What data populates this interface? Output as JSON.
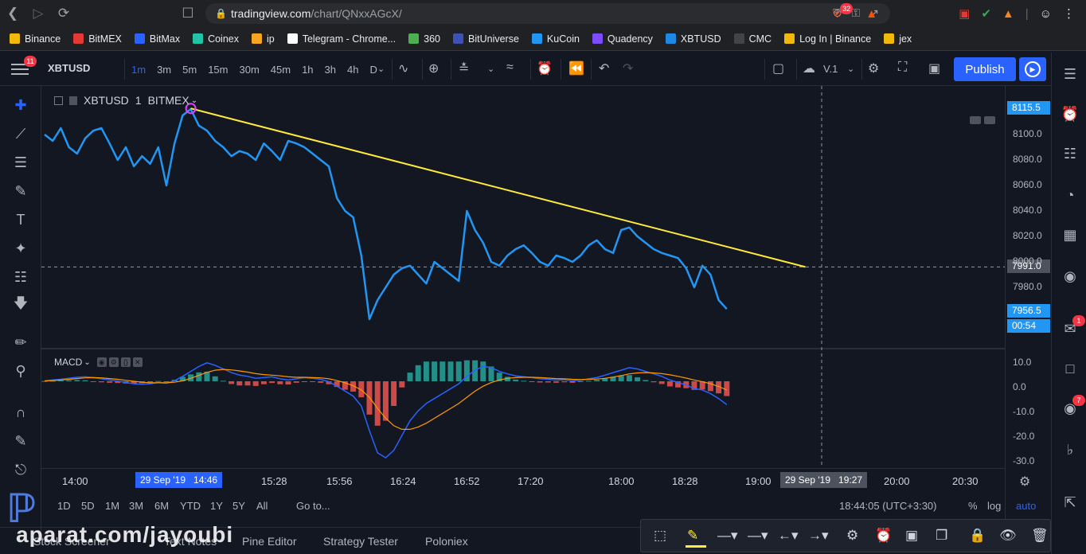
{
  "browser": {
    "url_host": "tradingview.com",
    "url_path": "/chart/QNxxAGcX/",
    "brave_badge": "32",
    "bookmarks": [
      {
        "label": "Binance",
        "color": "#f0b90b"
      },
      {
        "label": "BitMEX",
        "color": "#e53935"
      },
      {
        "label": "BitMax",
        "color": "#2962ff"
      },
      {
        "label": "Coinex",
        "color": "#23c3a5"
      },
      {
        "label": "ip",
        "color": "#f5a623"
      },
      {
        "label": "Telegram - Chrome...",
        "color": "#ffffff"
      },
      {
        "label": "360",
        "color": "#4caf50"
      },
      {
        "label": "BitUniverse",
        "color": "#3f51b5"
      },
      {
        "label": "KuCoin",
        "color": "#2196f3"
      },
      {
        "label": "Quadency",
        "color": "#7c4dff"
      },
      {
        "label": "XBTUSD",
        "color": "#1e88e5"
      },
      {
        "label": "CMC",
        "color": "#444444"
      },
      {
        "label": "Log In | Binance",
        "color": "#f0b90b"
      },
      {
        "label": "jex",
        "color": "#f0b90b"
      }
    ]
  },
  "header": {
    "menu_badge": "11",
    "symbol": "XBTUSD",
    "intervals": [
      "1m",
      "3m",
      "5m",
      "15m",
      "30m",
      "45m",
      "1h",
      "3h",
      "4h",
      "D"
    ],
    "active_interval": "1m",
    "layout_name": "V.1",
    "publish_label": "Publish"
  },
  "legend": {
    "symbol": "XBTUSD",
    "interval": "1",
    "exchange": "BITMEX"
  },
  "macd": {
    "label": "MACD"
  },
  "price_axis": {
    "ticks": [
      "8100.0",
      "8080.0",
      "8060.0",
      "8040.0",
      "8020.0",
      "8000.0",
      "7980.0"
    ],
    "top_label": "8115.5",
    "crosshair_label": "7991.0",
    "last_price": "7956.5",
    "countdown": "00:54",
    "macd_ticks": [
      "10.0",
      "0.0",
      "-10.0",
      "-20.0",
      "-30.0"
    ]
  },
  "time_axis": {
    "labels": [
      "14:00",
      "15:28",
      "15:56",
      "16:24",
      "16:52",
      "17:20",
      "18:00",
      "18:28",
      "19:00",
      "20:00",
      "20:30"
    ],
    "cursor_date_left": "29 Sep '19",
    "cursor_time_left": "14:46",
    "cursor_date_right": "29 Sep '19",
    "cursor_time_right": "19:27"
  },
  "bottom": {
    "ranges": [
      "1D",
      "5D",
      "1M",
      "3M",
      "6M",
      "YTD",
      "1Y",
      "5Y",
      "All"
    ],
    "goto": "Go to...",
    "clock": "18:44:05 (UTC+3:30)",
    "percent": "%",
    "log": "log",
    "auto": "auto"
  },
  "tabs": [
    "Stock Screener",
    "Text Notes",
    "Pine Editor",
    "Strategy Tester",
    "Poloniex"
  ],
  "right_badges": {
    "chat": "1",
    "streams": "7"
  },
  "watermark": "aparat.com/jayoubi",
  "colors": {
    "accent": "#2962ff",
    "price_line": "#2196f3",
    "trendline": "#ffeb3b",
    "macd_line": "#2962ff",
    "signal_line": "#ff9800",
    "hist_pos": "#26a69a",
    "hist_neg": "#ef5350"
  },
  "chart_data": {
    "type": "line",
    "symbol": "XBTUSD",
    "ylim": [
      7940,
      8120
    ],
    "series": [
      {
        "values": [
          8095,
          8090,
          8100,
          8085,
          8080,
          8092,
          8098,
          8100,
          8088,
          8075,
          8085,
          8070,
          8078,
          8072,
          8085,
          8055,
          8088,
          8110,
          8115,
          8102,
          8098,
          8090,
          8085,
          8078,
          8082,
          8080,
          8075,
          8088,
          8082,
          8075,
          8090,
          8088,
          8085,
          8080,
          8075,
          8070,
          8045,
          8035,
          8030,
          8000,
          7950,
          7965,
          7975,
          7985,
          7990,
          7992,
          7985,
          7978,
          7995,
          7990,
          7985,
          7980,
          8035,
          8020,
          8010,
          7995,
          7992,
          8000,
          8005,
          8008,
          8002,
          7995,
          7992,
          8000,
          7998,
          7995,
          8000,
          8008,
          8012,
          8005,
          8002,
          8020,
          8022,
          8015,
          8010,
          8005,
          8002,
          8000,
          7998,
          7990,
          7975,
          7992,
          7985,
          7965,
          7958
        ]
      }
    ],
    "trendline": {
      "from": [
        18,
        8115.5
      ],
      "to": [
        78,
        7991
      ]
    },
    "macd_ylim": [
      -32,
      12
    ],
    "macd": [
      0.2,
      0.5,
      0.8,
      1.2,
      1.6,
      1.8,
      1.5,
      1,
      0.5,
      0.1,
      -0.5,
      -1,
      -1.2,
      -1,
      -0.5,
      -0.8,
      0.2,
      2,
      4,
      6,
      7.5,
      6.5,
      5,
      3.5,
      2.5,
      2,
      1.2,
      1.5,
      1.8,
      1,
      0.5,
      1,
      1.5,
      1.2,
      0.8,
      -0.2,
      -2,
      -4,
      -6,
      -10,
      -20,
      -29,
      -31,
      -28,
      -22,
      -16,
      -12,
      -9,
      -7,
      -5,
      -3,
      -1,
      2,
      4.5,
      6,
      5.5,
      4,
      3,
      2.2,
      1.8,
      1.5,
      1,
      0.8,
      0.5,
      0.6,
      0.2,
      0.4,
      1,
      1.5,
      2.5,
      3.5,
      4.5,
      5.5,
      5,
      4,
      3,
      2,
      0.5,
      -0.5,
      -1.5,
      -3,
      -3.5,
      -5,
      -7,
      -9.5
    ],
    "signal": [
      0.1,
      0.3,
      0.5,
      0.8,
      1.1,
      1.4,
      1.5,
      1.4,
      1.1,
      0.8,
      0.4,
      0,
      -0.4,
      -0.6,
      -0.6,
      -0.6,
      -0.4,
      0.2,
      1.2,
      2.4,
      3.6,
      4.5,
      4.8,
      4.6,
      4.2,
      3.7,
      3.1,
      2.7,
      2.5,
      2.2,
      1.8,
      1.6,
      1.6,
      1.5,
      1.4,
      1,
      0.3,
      -0.6,
      -1.8,
      -3.5,
      -6.5,
      -11,
      -15,
      -18,
      -19.5,
      -19.5,
      -18.5,
      -17,
      -15,
      -13,
      -11,
      -9,
      -6.5,
      -4,
      -2,
      -0.5,
      0.5,
      1.2,
      1.5,
      1.6,
      1.6,
      1.5,
      1.3,
      1.1,
      1,
      0.8,
      0.7,
      0.8,
      0.9,
      1.2,
      1.7,
      2.3,
      3,
      3.4,
      3.5,
      3.4,
      3.1,
      2.6,
      2,
      1.3,
      0.5,
      -0.2,
      -1,
      -2.1,
      -3.5
    ]
  }
}
